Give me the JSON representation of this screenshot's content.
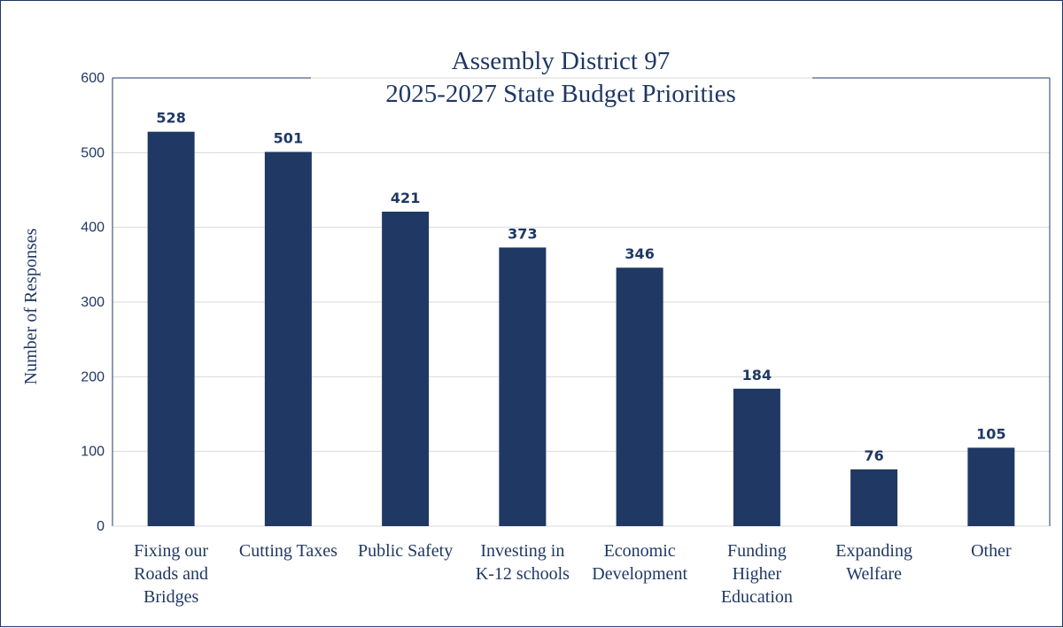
{
  "chart_data": {
    "type": "bar",
    "title": [
      "Assembly District 97",
      "2025-2027 State Budget Priorities"
    ],
    "ylabel": "Number of Responses",
    "xlabel": "",
    "ylim": [
      0,
      600
    ],
    "yticks": [
      0,
      100,
      200,
      300,
      400,
      500,
      600
    ],
    "grid": true,
    "legend": "none",
    "bar_color": "#1f3864",
    "categories": [
      [
        "Fixing our",
        "Roads and",
        "Bridges"
      ],
      [
        "Cutting Taxes"
      ],
      [
        "Public Safety"
      ],
      [
        "Investing in",
        "K-12 schools"
      ],
      [
        "Economic",
        "Development"
      ],
      [
        "Funding",
        "Higher",
        "Education"
      ],
      [
        "Expanding",
        "Welfare"
      ],
      [
        "Other"
      ]
    ],
    "values": [
      528,
      501,
      421,
      373,
      346,
      184,
      76,
      105
    ],
    "data_labels": [
      "528",
      "501",
      "421",
      "373",
      "346",
      "184",
      "76",
      "105"
    ]
  }
}
